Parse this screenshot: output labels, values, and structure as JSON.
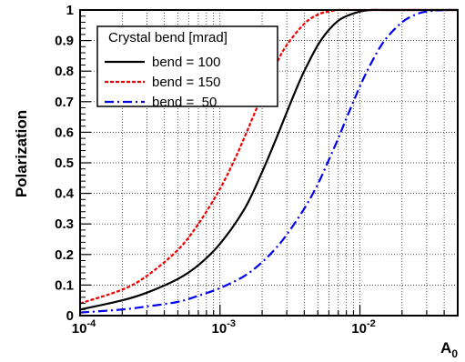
{
  "chart_data": {
    "type": "line",
    "title": "",
    "xlabel": "A",
    "xlabel_sub": "0",
    "ylabel": "Polarization",
    "x_scale": "log",
    "xlim": [
      0.0001,
      0.05
    ],
    "ylim": [
      0,
      1
    ],
    "grid": true,
    "x_ticks": [
      {
        "value": 0.0001,
        "base": "10",
        "exp": "-4"
      },
      {
        "value": 0.001,
        "base": "10",
        "exp": "-3"
      },
      {
        "value": 0.01,
        "base": "10",
        "exp": "-2"
      }
    ],
    "y_ticks": [
      "0",
      "0.1",
      "0.2",
      "0.3",
      "0.4",
      "0.5",
      "0.6",
      "0.7",
      "0.8",
      "0.9",
      "1"
    ],
    "legend": {
      "title": "Crystal bend [mrad]",
      "placement": "top-left"
    },
    "series": [
      {
        "name": "bend = 100",
        "color": "#000000",
        "dash": "solid",
        "x": [
          0.0001,
          0.0002,
          0.0003,
          0.0005,
          0.0007,
          0.001,
          0.0015,
          0.002,
          0.0025,
          0.003,
          0.0035,
          0.004,
          0.005,
          0.006,
          0.007,
          0.008,
          0.01,
          0.012,
          0.015,
          0.02,
          0.05
        ],
        "y": [
          0.02,
          0.05,
          0.075,
          0.12,
          0.165,
          0.235,
          0.35,
          0.47,
          0.575,
          0.665,
          0.74,
          0.8,
          0.885,
          0.935,
          0.965,
          0.98,
          0.995,
          1.0,
          1.0,
          1.0,
          1.0
        ]
      },
      {
        "name": "bend = 150",
        "color": "#ee0000",
        "dash": "dashed",
        "x": [
          0.0001,
          0.0002,
          0.0003,
          0.0005,
          0.0007,
          0.001,
          0.0013,
          0.0015,
          0.002,
          0.0025,
          0.003,
          0.004,
          0.005,
          0.006,
          0.007,
          0.008,
          0.01,
          0.05
        ],
        "y": [
          0.04,
          0.085,
          0.13,
          0.215,
          0.3,
          0.415,
          0.52,
          0.585,
          0.72,
          0.82,
          0.885,
          0.955,
          0.985,
          0.995,
          1.0,
          1.0,
          1.0,
          1.0
        ]
      },
      {
        "name": "bend =  50",
        "color": "#0000ee",
        "dash": "dashdot",
        "x": [
          0.0001,
          0.0002,
          0.0003,
          0.0005,
          0.0007,
          0.001,
          0.0015,
          0.002,
          0.0025,
          0.003,
          0.004,
          0.005,
          0.006,
          0.007,
          0.008,
          0.01,
          0.012,
          0.015,
          0.02,
          0.025,
          0.03,
          0.04,
          0.05
        ],
        "y": [
          0.01,
          0.02,
          0.03,
          0.045,
          0.065,
          0.09,
          0.13,
          0.175,
          0.22,
          0.265,
          0.35,
          0.43,
          0.51,
          0.58,
          0.645,
          0.75,
          0.825,
          0.9,
          0.96,
          0.985,
          0.995,
          1.0,
          1.0
        ]
      }
    ]
  }
}
